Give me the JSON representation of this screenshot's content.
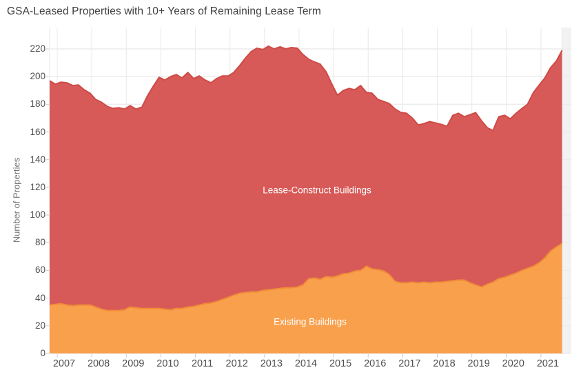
{
  "title": "GSA-Leased Properties with 10+ Years of Remaining Lease Term",
  "y_axis": {
    "title": "Number of Properties",
    "ticks": [
      0,
      20,
      40,
      60,
      80,
      100,
      120,
      140,
      160,
      180,
      200,
      220
    ]
  },
  "x_axis": {
    "years": [
      "2007",
      "2008",
      "2009",
      "2010",
      "2011",
      "2012",
      "2013",
      "2014",
      "2015",
      "2016",
      "2017",
      "2018",
      "2019",
      "2020",
      "2021"
    ]
  },
  "area_labels": {
    "lease_construct": "Lease-Construct Buildings",
    "existing": "Existing Buildings"
  },
  "colors": {
    "lease_fill": "#d75a58",
    "lease_edge": "#ce4a46",
    "existing_fill": "#f9a04d",
    "existing_edge": "#ef8c38",
    "gridline": "#ececec",
    "tick_mark": "#c9c9c9",
    "right_gutter": "#f2f2f2",
    "title_text": "#3f3f3f",
    "axis_text": "#4e4e4e"
  },
  "chart_data": {
    "type": "area",
    "stacked": true,
    "title": "GSA-Leased Properties with 10+ Years of Remaining Lease Term",
    "xlabel": "",
    "ylabel": "Number of Properties",
    "ylim": [
      0,
      225
    ],
    "xlim": [
      2007,
      2021.83
    ],
    "grid": true,
    "legend_position": "inside-area-labels",
    "x": [
      2007,
      2007.17,
      2007.33,
      2007.5,
      2007.67,
      2007.83,
      2008,
      2008.17,
      2008.33,
      2008.5,
      2008.67,
      2008.83,
      2009,
      2009.17,
      2009.33,
      2009.5,
      2009.67,
      2009.83,
      2010,
      2010.17,
      2010.33,
      2010.5,
      2010.67,
      2010.83,
      2011,
      2011.17,
      2011.33,
      2011.5,
      2011.67,
      2011.83,
      2012,
      2012.17,
      2012.33,
      2012.5,
      2012.67,
      2012.83,
      2013,
      2013.17,
      2013.33,
      2013.5,
      2013.67,
      2013.83,
      2014,
      2014.17,
      2014.33,
      2014.5,
      2014.67,
      2014.83,
      2015,
      2015.17,
      2015.33,
      2015.5,
      2015.67,
      2015.83,
      2016,
      2016.17,
      2016.33,
      2016.5,
      2016.67,
      2016.83,
      2017,
      2017.17,
      2017.33,
      2017.5,
      2017.67,
      2017.83,
      2018,
      2018.17,
      2018.33,
      2018.5,
      2018.67,
      2018.83,
      2019,
      2019.17,
      2019.33,
      2019.5,
      2019.67,
      2019.83,
      2020,
      2020.17,
      2020.33,
      2020.5,
      2020.67,
      2020.83,
      2021,
      2021.17,
      2021.33,
      2021.5,
      2021.67,
      2021.83
    ],
    "series": [
      {
        "name": "Existing Buildings",
        "color": "#f9a04d",
        "values": [
          35,
          35.5,
          36,
          35,
          34.5,
          35,
          35,
          35,
          33.5,
          32,
          31,
          31,
          31,
          31.5,
          33.5,
          33,
          32.5,
          32.5,
          32.5,
          32.5,
          32,
          31.5,
          32.5,
          32.5,
          33.5,
          34,
          35,
          36,
          36.5,
          37.5,
          39,
          40.5,
          42,
          43.5,
          44,
          44.5,
          44.5,
          45.5,
          46,
          46.5,
          47,
          47.5,
          47.5,
          48,
          49.5,
          54,
          54.5,
          53.5,
          55.5,
          55,
          56,
          57.5,
          58,
          59.5,
          60,
          63,
          61,
          60.5,
          59.5,
          57,
          52,
          51,
          51,
          51.5,
          51,
          51.5,
          51,
          51.5,
          51.5,
          52,
          52.5,
          53,
          53,
          51,
          49.5,
          48,
          50,
          51.5,
          54,
          55,
          56.5,
          58,
          60,
          61.5,
          63,
          65.5,
          69,
          74,
          77,
          79.5
        ]
      },
      {
        "name": "Lease-Construct Buildings",
        "color": "#d75a58",
        "values": [
          162,
          159,
          160,
          160.5,
          159,
          159,
          155.5,
          153,
          150,
          149.5,
          147.5,
          146,
          146.5,
          145,
          145.5,
          143.5,
          145.5,
          153.5,
          160.5,
          167,
          165.5,
          168.5,
          169,
          166.5,
          169.5,
          164.5,
          165.5,
          161.5,
          159,
          161,
          161.5,
          160,
          161,
          164.5,
          169.5,
          173.5,
          176,
          174,
          176,
          173.5,
          174.5,
          172.5,
          173.5,
          172.5,
          166.5,
          158.5,
          156,
          155.5,
          148,
          139.5,
          130.5,
          132.5,
          133.5,
          131,
          133.5,
          125.5,
          127,
          123,
          122.5,
          123.5,
          124.5,
          123,
          122.5,
          118.5,
          114,
          114.5,
          116.5,
          115,
          114,
          112,
          119.5,
          120.5,
          118,
          121.5,
          124.5,
          120,
          113,
          109.5,
          117,
          117,
          113,
          115.5,
          117,
          118.5,
          125.5,
          128.5,
          130,
          132.5,
          134.5,
          139.5
        ]
      }
    ]
  }
}
